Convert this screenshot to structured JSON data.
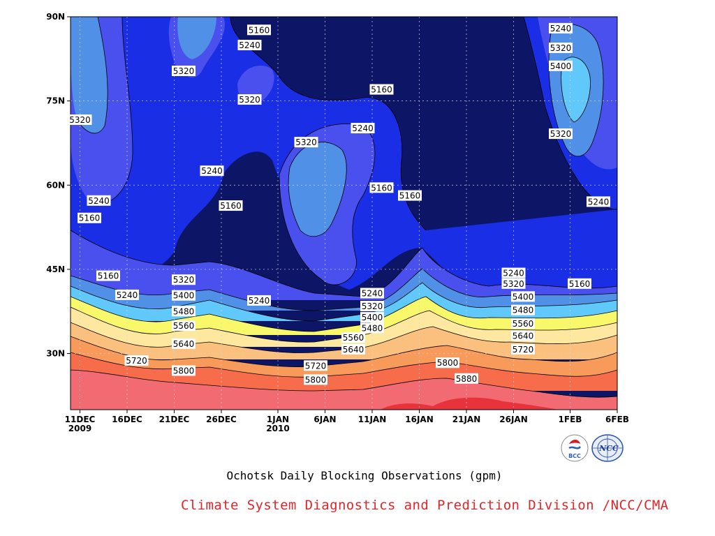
{
  "chart_data": {
    "type": "heatmap",
    "title": "",
    "xlabel": "",
    "ylabel": "",
    "x_ticks": [
      {
        "date": "2009-12-11",
        "label": "11DEC",
        "sublabel": "2009"
      },
      {
        "date": "2009-12-16",
        "label": "16DEC",
        "sublabel": ""
      },
      {
        "date": "2009-12-21",
        "label": "21DEC",
        "sublabel": ""
      },
      {
        "date": "2009-12-26",
        "label": "26DEC",
        "sublabel": ""
      },
      {
        "date": "2010-01-01",
        "label": "1JAN",
        "sublabel": "2010"
      },
      {
        "date": "2010-01-06",
        "label": "6JAN",
        "sublabel": ""
      },
      {
        "date": "2010-01-11",
        "label": "11JAN",
        "sublabel": ""
      },
      {
        "date": "2010-01-16",
        "label": "16JAN",
        "sublabel": ""
      },
      {
        "date": "2010-01-21",
        "label": "21JAN",
        "sublabel": ""
      },
      {
        "date": "2010-01-26",
        "label": "26JAN",
        "sublabel": ""
      },
      {
        "date": "2010-02-01",
        "label": "1FEB",
        "sublabel": ""
      },
      {
        "date": "2010-02-06",
        "label": "6FEB",
        "sublabel": ""
      }
    ],
    "y_ticks": [
      {
        "lat": 30,
        "label": "30N"
      },
      {
        "lat": 45,
        "label": "45N"
      },
      {
        "lat": 60,
        "label": "60N"
      },
      {
        "lat": 75,
        "label": "75N"
      },
      {
        "lat": 90,
        "label": "90N"
      }
    ],
    "xlim": [
      "2009-12-10",
      "2010-02-06"
    ],
    "ylim": [
      20,
      90
    ],
    "grid": true,
    "contour_levels": [
      5160,
      5240,
      5320,
      5400,
      5480,
      5560,
      5640,
      5720,
      5800,
      5880
    ],
    "level_colors": [
      "#0d1566",
      "#1a2ee6",
      "#4a50ee",
      "#5090e6",
      "#60c8fa",
      "#58c0fa",
      "#f8f86a",
      "#fee8a0",
      "#fcc07e",
      "#f89a5a",
      "#f76d4c",
      "#f26a72",
      "#e8323c"
    ],
    "bands": [
      {
        "date": "2009-12-11",
        "lat": 27,
        "value": 5800
      },
      {
        "date": "2009-12-11",
        "lat": 33,
        "value": 5640
      },
      {
        "date": "2009-12-11",
        "lat": 37,
        "value": 5560
      },
      {
        "date": "2009-12-11",
        "lat": 41,
        "value": 5400
      },
      {
        "date": "2009-12-11",
        "lat": 46,
        "value": 5240
      },
      {
        "date": "2009-12-11",
        "lat": 55,
        "value": 5240
      },
      {
        "date": "2009-12-11",
        "lat": 80,
        "value": 5320
      },
      {
        "date": "2010-01-01",
        "lat": 31,
        "value": 5640
      },
      {
        "date": "2010-01-01",
        "lat": 38,
        "value": 5480
      },
      {
        "date": "2010-01-01",
        "lat": 42,
        "value": 5320
      },
      {
        "date": "2010-01-01",
        "lat": 55,
        "value": 5160
      },
      {
        "date": "2010-01-01",
        "lat": 80,
        "value": 5160
      },
      {
        "date": "2010-01-16",
        "lat": 27,
        "value": 5800
      },
      {
        "date": "2010-01-16",
        "lat": 34,
        "value": 5640
      },
      {
        "date": "2010-01-16",
        "lat": 40,
        "value": 5480
      },
      {
        "date": "2010-01-16",
        "lat": 46,
        "value": 5240
      },
      {
        "date": "2010-01-16",
        "lat": 70,
        "value": 5160
      },
      {
        "date": "2010-01-21",
        "lat": 22,
        "value": 5880
      },
      {
        "date": "2010-02-01",
        "lat": 27,
        "value": 5800
      },
      {
        "date": "2010-02-01",
        "lat": 34,
        "value": 5560
      },
      {
        "date": "2010-02-01",
        "lat": 40,
        "value": 5320
      },
      {
        "date": "2010-02-01",
        "lat": 47,
        "value": 5160
      },
      {
        "date": "2010-02-01",
        "lat": 65,
        "value": 5320
      },
      {
        "date": "2010-02-01",
        "lat": 77,
        "value": 5480
      }
    ],
    "contour_labels": [
      {
        "text": "5160",
        "date": "2009-12-30",
        "lat": 87.6
      },
      {
        "text": "5240",
        "date": "2009-12-29",
        "lat": 84.9
      },
      {
        "text": "5320",
        "date": "2009-12-22",
        "lat": 80.3
      },
      {
        "text": "5320",
        "date": "2009-12-29",
        "lat": 75.2
      },
      {
        "text": "5320",
        "date": "2009-12-11",
        "lat": 71.6
      },
      {
        "text": "5160",
        "date": "2010-01-12",
        "lat": 77.0
      },
      {
        "text": "5240",
        "date": "2010-01-10",
        "lat": 70.1
      },
      {
        "text": "5320",
        "date": "2010-01-04",
        "lat": 67.6
      },
      {
        "text": "5240",
        "date": "2009-12-25",
        "lat": 62.5
      },
      {
        "text": "5160",
        "date": "2010-01-12",
        "lat": 59.5
      },
      {
        "text": "5160",
        "date": "2010-01-15",
        "lat": 58.1
      },
      {
        "text": "5240",
        "date": "2009-12-13",
        "lat": 57.2
      },
      {
        "text": "5160",
        "date": "2009-12-27",
        "lat": 56.3
      },
      {
        "text": "5160",
        "date": "2009-12-12",
        "lat": 54.1
      },
      {
        "text": "5240",
        "date": "2010-01-26",
        "lat": 44.3
      },
      {
        "text": "5160",
        "date": "2009-12-14",
        "lat": 43.8
      },
      {
        "text": "5320",
        "date": "2009-12-22",
        "lat": 43.1
      },
      {
        "text": "5320",
        "date": "2010-01-26",
        "lat": 42.4
      },
      {
        "text": "5160",
        "date": "2010-02-02",
        "lat": 42.4
      },
      {
        "text": "5240",
        "date": "2009-12-16",
        "lat": 40.4
      },
      {
        "text": "5400",
        "date": "2009-12-22",
        "lat": 40.3
      },
      {
        "text": "5240",
        "date": "2010-01-11",
        "lat": 40.7
      },
      {
        "text": "5400",
        "date": "2010-01-27",
        "lat": 40.1
      },
      {
        "text": "5240",
        "date": "2009-12-30",
        "lat": 39.4
      },
      {
        "text": "5320",
        "date": "2010-01-11",
        "lat": 38.4
      },
      {
        "text": "5480",
        "date": "2009-12-22",
        "lat": 37.5
      },
      {
        "text": "5480",
        "date": "2010-01-27",
        "lat": 37.7
      },
      {
        "text": "5400",
        "date": "2010-01-11",
        "lat": 36.4
      },
      {
        "text": "5560",
        "date": "2010-01-27",
        "lat": 35.3
      },
      {
        "text": "5560",
        "date": "2009-12-22",
        "lat": 34.9
      },
      {
        "text": "5480",
        "date": "2010-01-11",
        "lat": 34.5
      },
      {
        "text": "5560",
        "date": "2010-01-09",
        "lat": 32.8
      },
      {
        "text": "5640",
        "date": "2010-01-27",
        "lat": 33.1
      },
      {
        "text": "5640",
        "date": "2009-12-22",
        "lat": 31.7
      },
      {
        "text": "5640",
        "date": "2010-01-09",
        "lat": 30.7
      },
      {
        "text": "5720",
        "date": "2010-01-27",
        "lat": 30.7
      },
      {
        "text": "5800",
        "date": "2010-01-19",
        "lat": 28.3
      },
      {
        "text": "5720",
        "date": "2009-12-17",
        "lat": 28.7
      },
      {
        "text": "5720",
        "date": "2010-01-05",
        "lat": 27.8
      },
      {
        "text": "5800",
        "date": "2009-12-22",
        "lat": 26.9
      },
      {
        "text": "5880",
        "date": "2010-01-21",
        "lat": 25.5
      },
      {
        "text": "5800",
        "date": "2010-01-05",
        "lat": 25.3
      },
      {
        "text": "5880",
        "date": "2010-01-21",
        "lat": 25.5
      },
      {
        "text": "5320",
        "date": "2010-01-31",
        "lat": 84.4
      },
      {
        "text": "5240",
        "date": "2010-01-31",
        "lat": 87.9
      },
      {
        "text": "5400",
        "date": "2010-01-31",
        "lat": 81.2
      },
      {
        "text": "5320",
        "date": "2010-01-31",
        "lat": 69.1
      },
      {
        "text": "5240",
        "date": "2010-02-04",
        "lat": 57.0
      }
    ]
  },
  "caption": "Ochotsk Daily Blocking Observations (gpm)",
  "credit": "Climate System Diagnostics and Prediction Division /NCC/CMA",
  "logos": [
    {
      "name": "bcc-logo-icon",
      "text": "BCC"
    },
    {
      "name": "ncc-logo-icon",
      "text": "NCC"
    }
  ]
}
